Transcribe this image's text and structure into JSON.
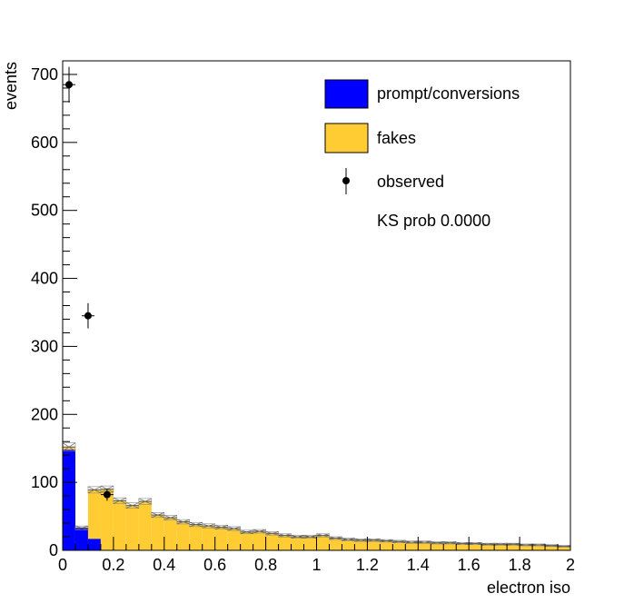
{
  "chart_data": {
    "type": "bar",
    "stacked": true,
    "xlabel": "electron iso",
    "ylabel": "events",
    "xlim": [
      0,
      2
    ],
    "ylim": [
      0,
      720
    ],
    "bin_width": 0.05,
    "x_ticks": [
      0,
      0.2,
      0.4,
      0.6,
      0.8,
      1,
      1.2,
      1.4,
      1.6,
      1.8,
      2
    ],
    "x_tick_labels": [
      "0",
      "0.2",
      "0.4",
      "0.6",
      "0.8",
      "1",
      "1.2",
      "1.4",
      "1.6",
      "1.8",
      "2"
    ],
    "y_ticks": [
      0,
      100,
      200,
      300,
      400,
      500,
      600,
      700
    ],
    "y_tick_labels": [
      "0",
      "100",
      "200",
      "300",
      "400",
      "500",
      "600",
      "700"
    ],
    "grid": false,
    "legend_position": "top-right",
    "series": [
      {
        "name": "prompt/conversions",
        "color": "#0000ff",
        "values": [
          148,
          33,
          17,
          0,
          0,
          0,
          0,
          0,
          0,
          0,
          0,
          0,
          0,
          0,
          0,
          0,
          0,
          0,
          0,
          0,
          0,
          0,
          0,
          0,
          0,
          0,
          0,
          0,
          0,
          0,
          0,
          0,
          0,
          0,
          0,
          0,
          0,
          0,
          0,
          0
        ]
      },
      {
        "name": "fakes",
        "color": "#ffcc33",
        "values": [
          4,
          0,
          72,
          90,
          73,
          66,
          72,
          52,
          48,
          42,
          38,
          36,
          34,
          32,
          27,
          28,
          25,
          22,
          20,
          20,
          22,
          18,
          16,
          15,
          15,
          14,
          13,
          12,
          12,
          11,
          11,
          10,
          10,
          9,
          9,
          9,
          8,
          8,
          7,
          6
        ]
      }
    ],
    "observed": {
      "name": "observed",
      "points": [
        {
          "x": 0.025,
          "y": 685
        },
        {
          "x": 0.1,
          "y": 345
        },
        {
          "x": 0.175,
          "y": 82
        }
      ]
    },
    "annotation": "KS prob 0.0000"
  }
}
